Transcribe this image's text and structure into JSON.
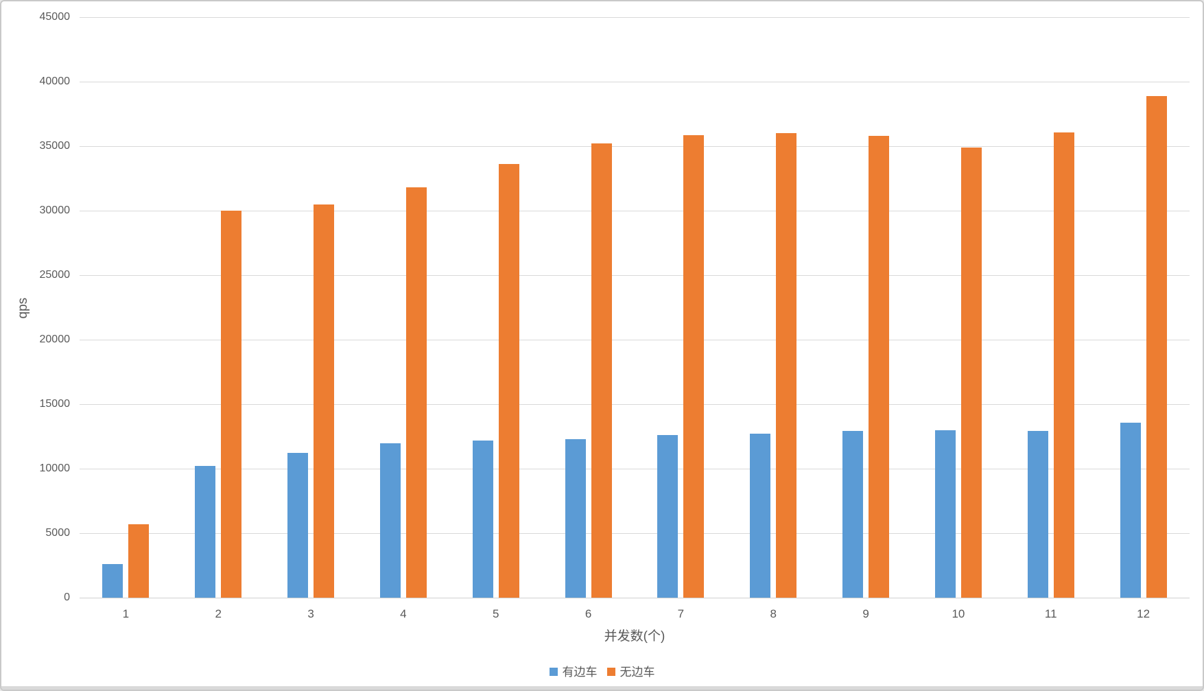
{
  "window": {
    "background": "#ffffff",
    "border_color": "#c9c9c9",
    "bottom_strip_color": "#d9d9d9"
  },
  "chart_data": {
    "type": "bar",
    "title": "",
    "xlabel": "并发数(个)",
    "ylabel": "qps",
    "categories": [
      "1",
      "2",
      "3",
      "4",
      "5",
      "6",
      "7",
      "8",
      "9",
      "10",
      "11",
      "12"
    ],
    "series": [
      {
        "name": "有边车",
        "slug": "with-sidecar",
        "color": "#5B9BD5",
        "values": [
          2600,
          10200,
          11250,
          11950,
          12200,
          12300,
          12600,
          12700,
          12950,
          13000,
          12950,
          13550
        ]
      },
      {
        "name": "无边车",
        "slug": "without-sidecar",
        "color": "#ED7D31",
        "values": [
          5700,
          30000,
          30500,
          31800,
          33600,
          35200,
          35850,
          36000,
          35800,
          34900,
          36050,
          38900
        ]
      }
    ],
    "ylim": [
      0,
      45000
    ],
    "yticks": [
      0,
      5000,
      10000,
      15000,
      20000,
      25000,
      30000,
      35000,
      40000,
      45000
    ],
    "grid": true,
    "gridline_color": "#d9d9d9",
    "baseline_color": "#d0d0d0",
    "tick_label_color": "#595959",
    "legend_position": "bottom-center"
  }
}
